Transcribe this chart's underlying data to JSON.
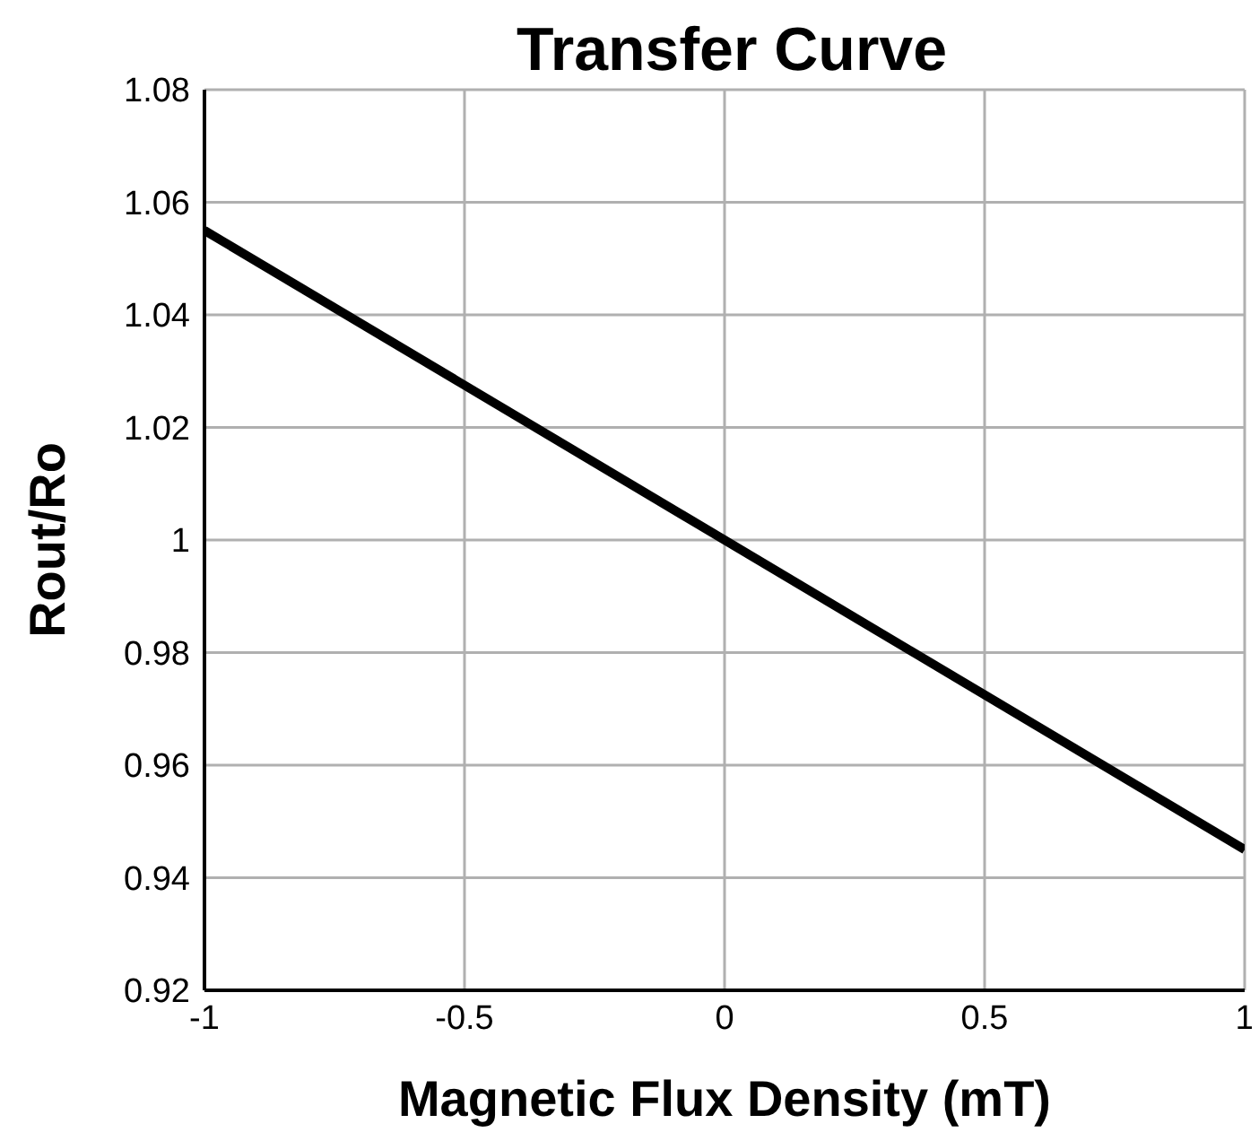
{
  "chart_data": {
    "type": "line",
    "title": "Transfer Curve",
    "xlabel": "Magnetic Flux Density (mT)",
    "ylabel": "Rout/Ro",
    "x": [
      -1,
      1
    ],
    "series": [
      {
        "color": "#000000",
        "values": [
          1.055,
          0.945
        ]
      }
    ],
    "xlim": [
      -1,
      1
    ],
    "xticks": [
      -1,
      -0.5,
      0,
      0.5,
      1
    ],
    "ylim": [
      0.92,
      1.08
    ],
    "yticks": [
      0.92,
      0.94,
      0.96,
      0.98,
      1,
      1.02,
      1.04,
      1.06,
      1.08
    ],
    "grid": true,
    "marker": "none",
    "line_style": "solid"
  }
}
